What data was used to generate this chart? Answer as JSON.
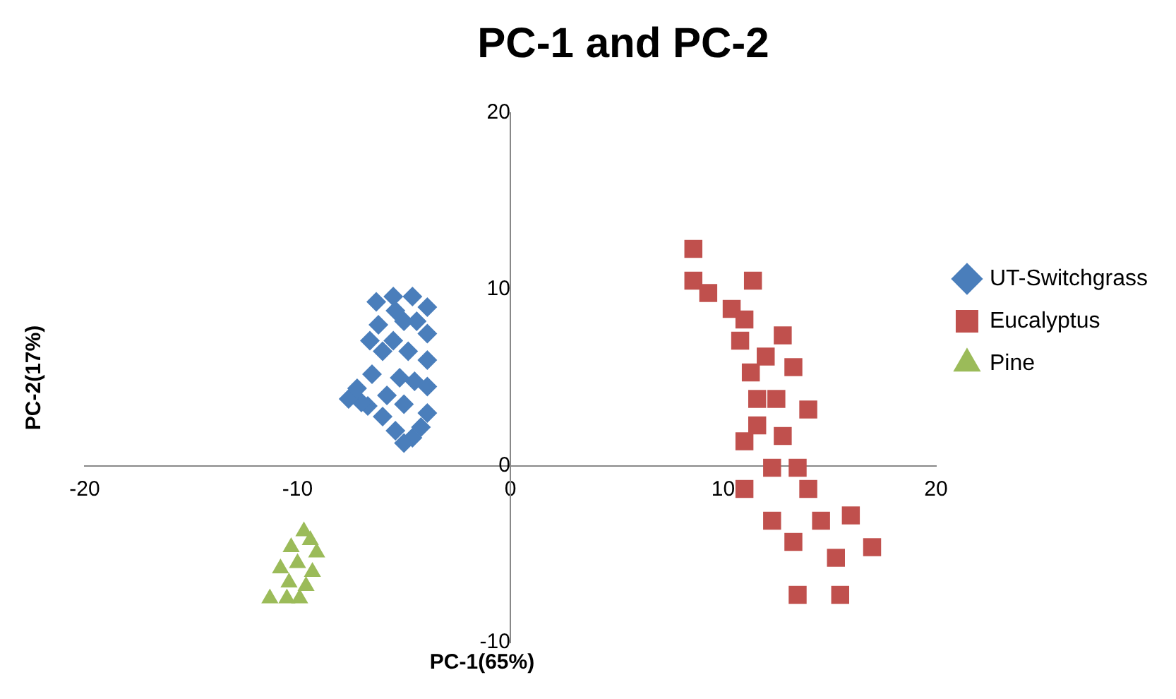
{
  "chart_data": {
    "type": "scatter",
    "title": "PC-1 and PC-2",
    "xlabel": "PC-1(65%)",
    "ylabel": "PC-2(17%)",
    "xlim": [
      -20,
      20
    ],
    "xticks": [
      -20,
      -10,
      0,
      10,
      20
    ],
    "ylim": [
      -10,
      20
    ],
    "yticks": [
      -10,
      0,
      10,
      20
    ],
    "grid": false,
    "legend": "right",
    "series": [
      {
        "name": "UT-Switchgrass",
        "color": "#4a7ebb",
        "marker": "diamond",
        "x": [
          -6.3,
          -5.5,
          -4.6,
          -3.9,
          -3.9,
          -3.9,
          -3.9,
          -3.9,
          -4.2,
          -4.6,
          -5.0,
          -5.4,
          -6.0,
          -6.7,
          -7.0,
          -7.6,
          -7.2,
          -6.5,
          -6.0,
          -5.5,
          -5.0,
          -4.8,
          -5.2,
          -5.8,
          -5.0,
          -4.5,
          -6.2,
          -5.4,
          -4.4,
          -6.6
        ],
        "values": [
          9.3,
          9.6,
          9.6,
          9.0,
          7.5,
          6.0,
          4.5,
          3.0,
          2.2,
          1.6,
          1.3,
          2.0,
          2.8,
          3.4,
          3.6,
          3.8,
          4.4,
          5.2,
          6.5,
          7.1,
          8.2,
          6.5,
          5.0,
          4.0,
          3.5,
          4.8,
          8.0,
          8.8,
          8.2,
          7.1
        ]
      },
      {
        "name": "Eucalyptus",
        "color": "#c0504d",
        "marker": "square",
        "x": [
          8.6,
          8.6,
          11.4,
          9.3,
          10.4,
          12.8,
          10.8,
          13.3,
          11.3,
          14.0,
          11.6,
          11.0,
          12.8,
          11.0,
          13.5,
          14.0,
          12.3,
          13.3,
          16.0,
          17.0,
          15.3,
          15.5,
          13.5,
          14.6,
          12.3,
          11.6,
          12.5,
          12.0,
          11.0
        ],
        "values": [
          12.3,
          10.5,
          10.5,
          9.8,
          8.9,
          7.4,
          7.1,
          5.6,
          5.3,
          3.2,
          3.8,
          1.4,
          1.7,
          -1.3,
          -0.1,
          -1.3,
          -3.1,
          -4.3,
          -2.8,
          -4.6,
          -5.2,
          -7.3,
          -7.3,
          -3.1,
          -0.1,
          2.3,
          3.8,
          6.2,
          8.3
        ]
      },
      {
        "name": "Pine",
        "color": "#9bbb59",
        "marker": "triangle",
        "x": [
          -9.7,
          -9.4,
          -9.1,
          -9.3,
          -9.9,
          -10.5,
          -11.3,
          -10.8,
          -10.3,
          -10.0,
          -9.6,
          -10.4
        ],
        "values": [
          -3.7,
          -4.2,
          -4.9,
          -6.0,
          -7.5,
          -7.5,
          -7.5,
          -5.8,
          -4.6,
          -5.5,
          -6.8,
          -6.6
        ]
      }
    ]
  }
}
